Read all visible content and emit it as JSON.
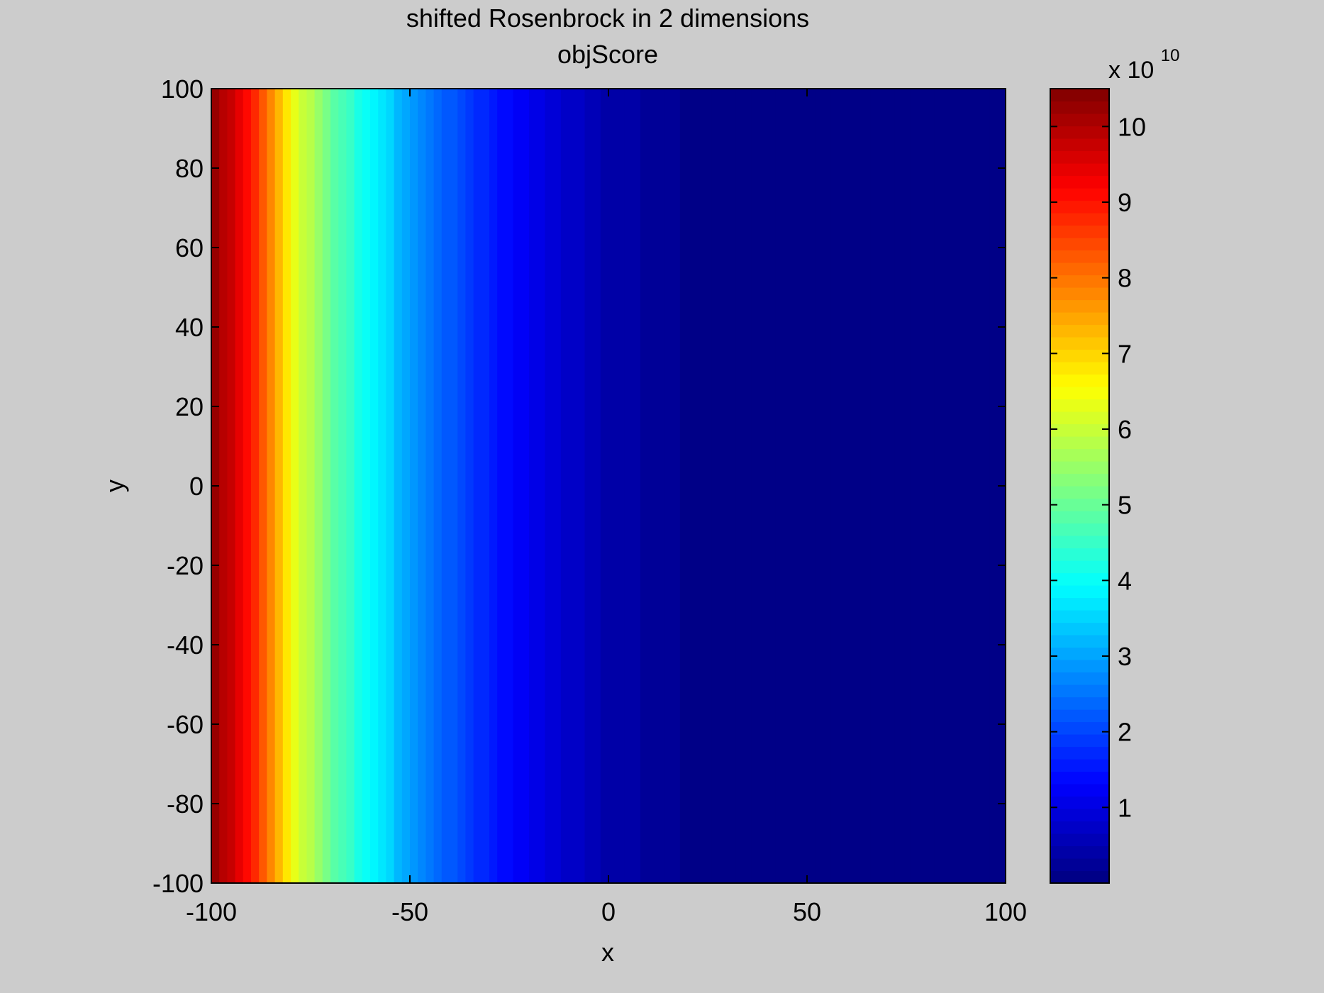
{
  "chart_data": {
    "type": "heatmap",
    "title": "shifted Rosenbrock in 2 dimensions",
    "subtitle": "objScore",
    "xlabel": "x",
    "ylabel": "y",
    "xlim": [
      -100,
      100
    ],
    "ylim": [
      -100,
      100
    ],
    "xticks": [
      -100,
      -50,
      0,
      50,
      100
    ],
    "yticks": [
      100,
      80,
      60,
      40,
      20,
      0,
      -20,
      -40,
      -60,
      -80,
      -100
    ],
    "grid": false,
    "colormap": "jet",
    "colormap_steps": 64,
    "colorbar": {
      "min": 0,
      "max": 10.5,
      "ticks": [
        1,
        2,
        3,
        4,
        5,
        6,
        7,
        8,
        9,
        10
      ],
      "exponent_base": "x 10",
      "exponent_power": "10",
      "placement": "right"
    },
    "value_profile": {
      "description": "value depends on x only; in units of 1e10",
      "x": [
        -100,
        -90,
        -80,
        -70,
        -60,
        -50,
        -40,
        -30,
        -20,
        -10,
        0,
        10,
        20,
        30,
        40,
        50,
        60,
        70,
        80,
        90,
        100
      ],
      "values": [
        10.4,
        9.0,
        6.5,
        5.0,
        3.9,
        3.0,
        2.2,
        1.6,
        1.1,
        0.75,
        0.45,
        0.28,
        0.15,
        0.08,
        0.04,
        0.02,
        0.01,
        0.005,
        0.002,
        0.001,
        0.0005
      ]
    },
    "colors": {
      "background": "#cccccc",
      "axes_line": "#000000",
      "text": "#000000"
    }
  }
}
